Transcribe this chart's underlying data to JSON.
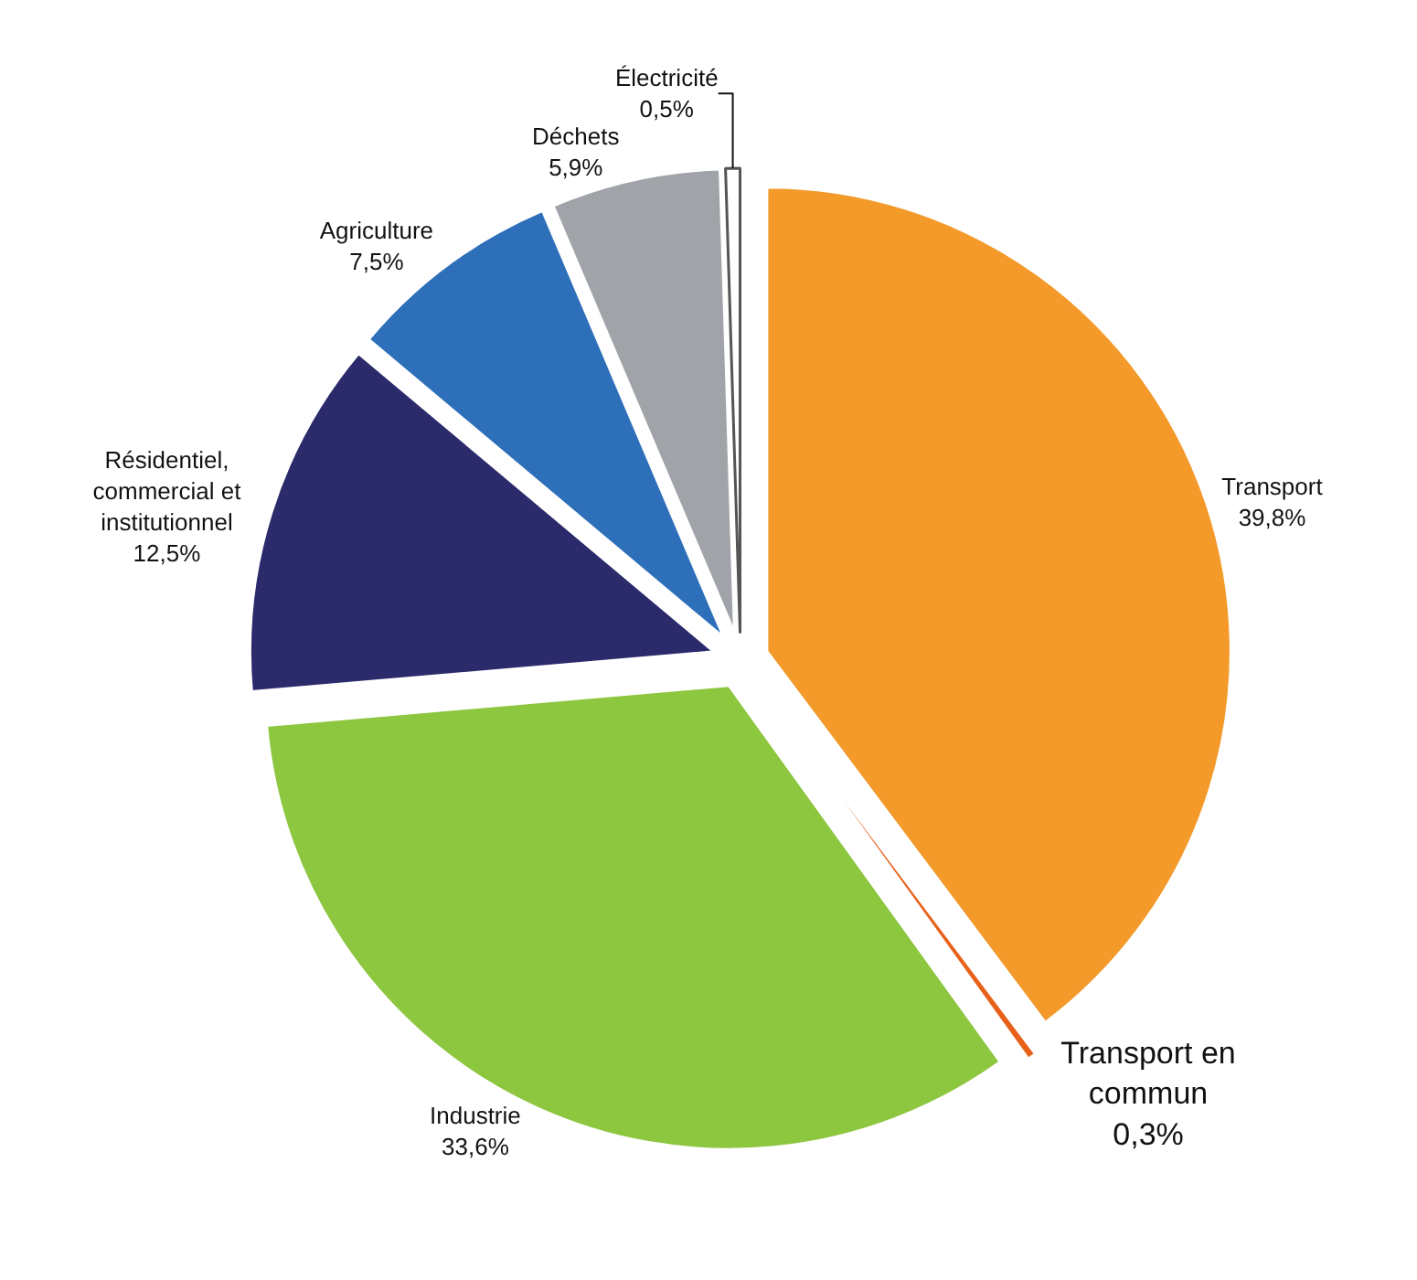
{
  "chart_data": {
    "type": "pie",
    "categories": [
      "Transport",
      "Transport en commun",
      "Industrie",
      "Résidentiel, commercial et institutionnel",
      "Agriculture",
      "Déchets",
      "Électricité"
    ],
    "values": [
      39.8,
      0.3,
      33.6,
      12.5,
      7.5,
      5.9,
      0.5
    ],
    "value_labels": [
      "39,8%",
      "0,3%",
      "33,6%",
      "12,5%",
      "7,5%",
      "5,9%",
      "0,5%"
    ],
    "colors": [
      "#f39a2b",
      "#e8611a",
      "#8dc63f",
      "#2b2a6b",
      "#2e6fba",
      "#a0a3a8",
      "#ffffff"
    ],
    "legend": false
  }
}
